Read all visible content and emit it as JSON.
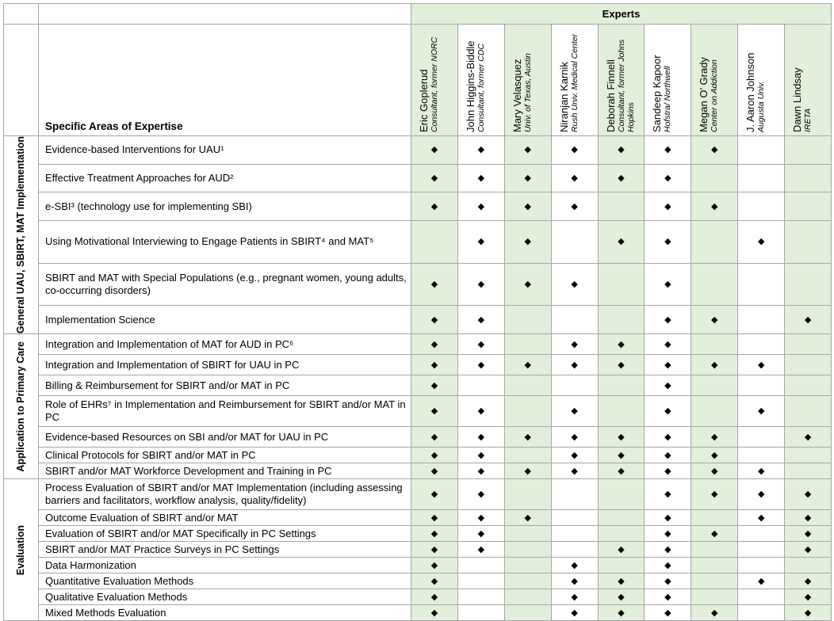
{
  "header": {
    "group_title": "Experts",
    "areas_title": "Specific Areas of Expertise",
    "experts": [
      {
        "name": "Eric Goplerud",
        "affiliation": "Consultant, former NORC"
      },
      {
        "name": "John Higgins-Biddle",
        "affiliation": "Consultant, former CDC"
      },
      {
        "name": "Mary Velasquez",
        "affiliation": "Univ. of Texas, Austin"
      },
      {
        "name": "Niranjan Karnik",
        "affiliation": "Rush Univ. Medical Center"
      },
      {
        "name": "Deborah Finnell",
        "affiliation": "Consultant, former Johns Hopkins"
      },
      {
        "name": "Sandeep Kapoor",
        "affiliation": "Hofstra/ Northwell"
      },
      {
        "name": "Megan O’ Grady",
        "affiliation": "Center on Addiction"
      },
      {
        "name": "J. Aaron Johnson",
        "affiliation": "Augusta Univ."
      },
      {
        "name": "Dawn Lindsay",
        "affiliation": "IRETA"
      }
    ]
  },
  "sections": [
    {
      "title": "General UAU, SBIRT, MAT Implementation",
      "rows": [
        {
          "area": "Evidence-based Interventions for UAU¹",
          "marks": [
            "◆",
            "◆",
            "◆",
            "◆",
            "◆",
            "◆",
            "◆",
            null,
            null
          ]
        },
        {
          "area": "Effective Treatment Approaches for AUD²",
          "marks": [
            "◆",
            "◆",
            "◆",
            "◆",
            "◆",
            "◆",
            null,
            null,
            null
          ]
        },
        {
          "area": "e-SBI³ (technology use for implementing SBI)",
          "marks": [
            "◆",
            "◆",
            "◆",
            "◆",
            null,
            "◆",
            "◆",
            null,
            null
          ]
        },
        {
          "area": "Using Motivational Interviewing to Engage Patients in SBIRT⁴ and MAT⁵",
          "marks": [
            null,
            "◆",
            "◆",
            null,
            "◆",
            "◆",
            null,
            "◆",
            null
          ]
        },
        {
          "area": "SBIRT and MAT with Special Populations (e.g., pregnant women, young adults, co-occurring disorders)",
          "marks": [
            "◆",
            "◆",
            "◆",
            "◆",
            null,
            "◆",
            null,
            null,
            null
          ]
        },
        {
          "area": "Implementation Science",
          "marks": [
            "◆",
            "◆",
            null,
            null,
            null,
            "◆",
            "◆",
            null,
            "◆"
          ]
        }
      ]
    },
    {
      "title": "Application to Primary Care",
      "rows": [
        {
          "area": "Integration and Implementation of MAT for AUD in PC⁶",
          "marks": [
            "◆",
            "◆",
            null,
            "◆",
            "◆",
            "◆",
            null,
            null,
            null
          ]
        },
        {
          "area": "Integration and Implementation of SBIRT for UAU in PC",
          "marks": [
            "◆",
            "◆",
            "◆",
            "◆",
            "◆",
            "◆",
            "◆",
            "◆",
            null
          ]
        },
        {
          "area": "Billing & Reimbursement for SBIRT and/or MAT in PC",
          "marks": [
            "◆",
            null,
            null,
            null,
            null,
            "◆",
            null,
            null,
            null
          ]
        },
        {
          "area": "Role of EHRs⁷ in Implementation and Reimbursement for SBIRT and/or MAT in PC",
          "marks": [
            "◆",
            "◆",
            null,
            "◆",
            null,
            "◆",
            null,
            "◆",
            null
          ]
        },
        {
          "area": "Evidence-based Resources on SBI and/or MAT for UAU in PC",
          "marks": [
            "◆",
            "◆",
            "◆",
            "◆",
            "◆",
            "◆",
            "◆",
            null,
            "◆"
          ]
        },
        {
          "area": "Clinical Protocols for SBIRT and/or MAT in PC",
          "marks": [
            "◆",
            "◆",
            null,
            "◆",
            "◆",
            "◆",
            "◆",
            null,
            null
          ]
        },
        {
          "area": "SBIRT and/or MAT Workforce Development and Training in PC",
          "marks": [
            "◆",
            "◆",
            "◆",
            "◆",
            "◆",
            "◆",
            "◆",
            "◆",
            null
          ]
        }
      ]
    },
    {
      "title": "Evaluation",
      "rows": [
        {
          "area": "Process Evaluation of SBIRT and/or MAT Implementation (including assessing barriers and facilitators, workflow analysis, quality/fidelity)",
          "marks": [
            "◆",
            "◆",
            null,
            null,
            null,
            "◆",
            "◆",
            "◆",
            "◆"
          ]
        },
        {
          "area": "Outcome Evaluation of SBIRT and/or MAT",
          "marks": [
            "◆",
            "◆",
            "◆",
            null,
            null,
            "◆",
            null,
            "◆",
            "◆"
          ]
        },
        {
          "area": "Evaluation of SBIRT and/or MAT Specifically in PC Settings",
          "marks": [
            "◆",
            "◆",
            null,
            null,
            null,
            "◆",
            "◆",
            null,
            "◆"
          ]
        },
        {
          "area": "SBIRT and/or MAT Practice Surveys in PC Settings",
          "marks": [
            "◆",
            "◆",
            null,
            null,
            "◆",
            "◆",
            null,
            null,
            "◆"
          ]
        },
        {
          "area": "Data Harmonization",
          "marks": [
            "◆",
            null,
            null,
            "◆",
            null,
            "◆",
            null,
            null,
            null
          ]
        },
        {
          "area": "Quantitative Evaluation Methods",
          "marks": [
            "◆",
            null,
            null,
            "◆",
            "◆",
            "◆",
            null,
            "◆",
            "◆"
          ]
        },
        {
          "area": "Qualitative Evaluation Methods",
          "marks": [
            "◆",
            null,
            null,
            "◆",
            "◆",
            "◆",
            null,
            null,
            "◆"
          ]
        },
        {
          "area": "Mixed Methods Evaluation",
          "marks": [
            "◆",
            null,
            null,
            "◆",
            "◆",
            "◆",
            "◆",
            null,
            "◆"
          ]
        }
      ]
    }
  ]
}
